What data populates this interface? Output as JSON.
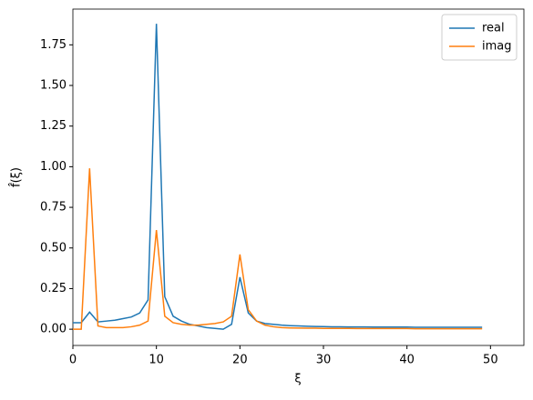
{
  "chart_data": {
    "type": "line",
    "x_label": "ξ",
    "y_label": "f̂(ξ)",
    "x": [
      0,
      1,
      2,
      3,
      4,
      5,
      6,
      7,
      8,
      9,
      10,
      11,
      12,
      13,
      14,
      15,
      16,
      17,
      18,
      19,
      20,
      21,
      22,
      23,
      24,
      25,
      26,
      27,
      28,
      29,
      30,
      31,
      32,
      33,
      34,
      35,
      36,
      37,
      38,
      39,
      40,
      41,
      42,
      43,
      44,
      45,
      46,
      47,
      48,
      49
    ],
    "series": [
      {
        "name": "real",
        "color": "#1f77b4",
        "values": [
          0.04,
          0.04,
          0.105,
          0.045,
          0.05,
          0.055,
          0.065,
          0.075,
          0.1,
          0.18,
          1.88,
          0.2,
          0.08,
          0.05,
          0.03,
          0.02,
          0.01,
          0.005,
          0.0,
          0.03,
          0.32,
          0.1,
          0.05,
          0.035,
          0.03,
          0.025,
          0.022,
          0.02,
          0.018,
          0.017,
          0.016,
          0.015,
          0.015,
          0.014,
          0.014,
          0.014,
          0.013,
          0.013,
          0.013,
          0.013,
          0.013,
          0.012,
          0.012,
          0.012,
          0.012,
          0.012,
          0.012,
          0.012,
          0.012,
          0.012
        ]
      },
      {
        "name": "imag",
        "color": "#ff7f0e",
        "values": [
          0.0,
          0.0,
          0.99,
          0.02,
          0.01,
          0.01,
          0.01,
          0.015,
          0.025,
          0.05,
          0.61,
          0.08,
          0.04,
          0.03,
          0.025,
          0.025,
          0.03,
          0.035,
          0.045,
          0.08,
          0.46,
          0.12,
          0.05,
          0.025,
          0.015,
          0.01,
          0.008,
          0.007,
          0.006,
          0.006,
          0.005,
          0.005,
          0.005,
          0.005,
          0.004,
          0.004,
          0.004,
          0.004,
          0.004,
          0.004,
          0.004,
          0.003,
          0.003,
          0.003,
          0.003,
          0.003,
          0.003,
          0.003,
          0.003,
          0.003
        ]
      }
    ],
    "xlim": [
      0,
      54
    ],
    "ylim": [
      -0.1,
      1.97
    ],
    "xticks": [
      0,
      10,
      20,
      30,
      40,
      50
    ],
    "yticks": [
      {
        "value": 0,
        "label": "0.00"
      },
      {
        "value": 0.25,
        "label": "0.25"
      },
      {
        "value": 0.5,
        "label": "0.50"
      },
      {
        "value": 0.75,
        "label": "0.75"
      },
      {
        "value": 1,
        "label": "1.00"
      },
      {
        "value": 1.25,
        "label": "1.25"
      },
      {
        "value": 1.5,
        "label": "1.50"
      },
      {
        "value": 1.75,
        "label": "1.75"
      }
    ],
    "legend": "upper right",
    "grid": false
  }
}
